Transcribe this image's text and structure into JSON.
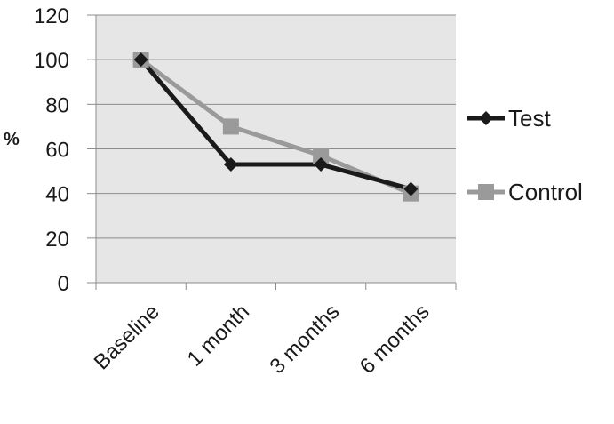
{
  "chart_data": {
    "type": "line",
    "title": "",
    "xlabel": "",
    "ylabel": "%",
    "categories": [
      "Baseline",
      "1 month",
      "3 months",
      "6 months"
    ],
    "ylim": [
      0,
      120
    ],
    "yticks": [
      0,
      20,
      40,
      60,
      80,
      100,
      120
    ],
    "grid": true,
    "legend_position": "right",
    "series": [
      {
        "name": "Test",
        "values": [
          100,
          53,
          53,
          42
        ],
        "color": "#1a1a1a",
        "marker": "diamond"
      },
      {
        "name": "Control",
        "values": [
          100,
          70,
          57,
          40
        ],
        "color": "#9a9a9a",
        "marker": "square"
      }
    ]
  }
}
